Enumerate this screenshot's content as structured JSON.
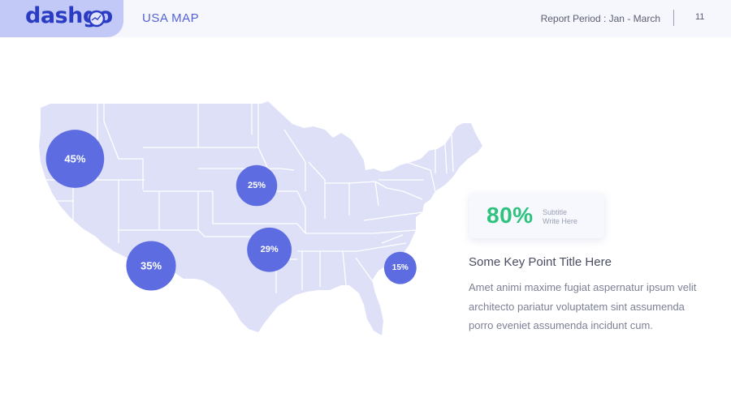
{
  "header": {
    "logo_text": "dashgo",
    "title": "USA MAP",
    "report_period": "Report Period : Jan - March",
    "page_number": "11"
  },
  "map": {
    "region": "USA",
    "land_color": "#dee0f8",
    "border_color": "#ffffff",
    "bubble_color": "#5d6de1",
    "markers": [
      {
        "label": "45%",
        "value": 45,
        "lon": -120.5,
        "lat": 44.0
      },
      {
        "label": "25%",
        "value": 25,
        "lon": -99.0,
        "lat": 41.5
      },
      {
        "label": "35%",
        "value": 35,
        "lon": -111.5,
        "lat": 34.0
      },
      {
        "label": "29%",
        "value": 29,
        "lon": -97.5,
        "lat": 35.5
      },
      {
        "label": "15%",
        "value": 15,
        "lon": -82.0,
        "lat": 33.8
      }
    ]
  },
  "stat": {
    "value": "80%",
    "subtitle_line1": "Subtitle",
    "subtitle_line2": "Write Here",
    "color": "#2ec27e"
  },
  "key_point": {
    "title": "Some Key Point Title Here",
    "body": "Amet animi maxime fugiat aspernatur ipsum velit architecto pariatur voluptatem sint assumenda porro eveniet assumenda incidunt cum."
  }
}
